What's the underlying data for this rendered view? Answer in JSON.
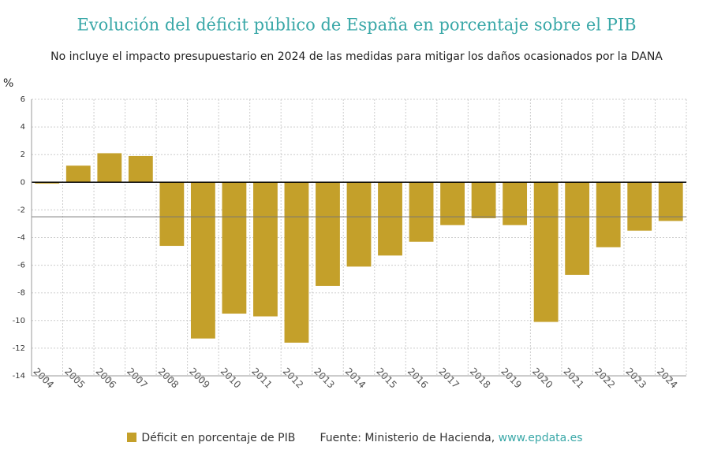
{
  "chart_data": {
    "type": "bar",
    "title": "Evolución del déficit público de España en porcentaje sobre el PIB",
    "subtitle": "No incluye el impacto presupuestario en 2024 de las medidas para mitigar los daños ocasionados por la DANA",
    "y_label": "%",
    "categories": [
      "2004",
      "2005",
      "2006",
      "2007",
      "2008",
      "2009",
      "2010",
      "2011",
      "2012",
      "2013",
      "2014",
      "2015",
      "2016",
      "2017",
      "2018",
      "2019",
      "2020",
      "2021",
      "2022",
      "2023",
      "2024"
    ],
    "series": [
      {
        "name": "Déficit en porcentaje de PIB",
        "color": "#c4a02a",
        "values": [
          -0.1,
          1.2,
          2.1,
          1.9,
          -4.6,
          -11.3,
          -9.5,
          -9.7,
          -11.6,
          -7.5,
          -6.1,
          -5.3,
          -4.3,
          -3.1,
          -2.6,
          -3.1,
          -10.1,
          -6.7,
          -4.7,
          -3.5,
          -2.8
        ]
      }
    ],
    "reference_line": -2.5,
    "ylim": [
      -14,
      6
    ],
    "yticks": [
      -14,
      -12,
      -10,
      -8,
      -6,
      -4,
      -2,
      0,
      2,
      4,
      6
    ],
    "grid": true,
    "source": "Fuente: Ministerio de Hacienda,",
    "source_link": "www.epdata.es"
  }
}
